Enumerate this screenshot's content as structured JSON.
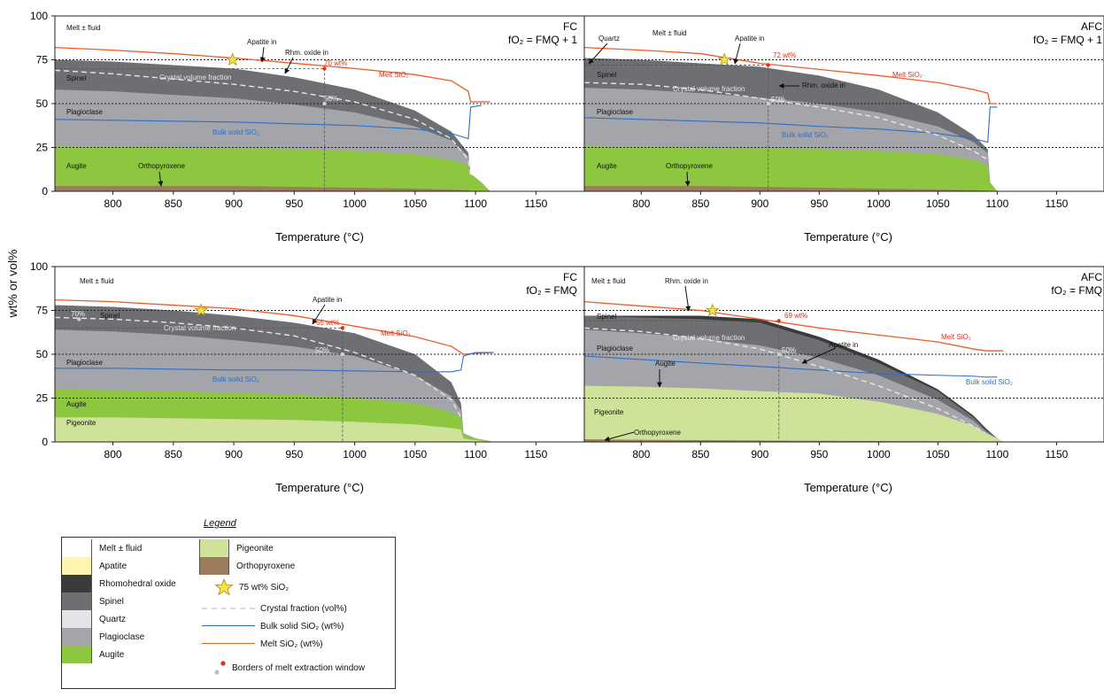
{
  "y_axis_title": "wt% or vol%",
  "panels": [
    {
      "id": "fc-fmq1",
      "label": "FC",
      "fo2": "fO₂ = FMQ + 1",
      "xlabel": "Temperature (°C)",
      "x_ticks": [
        "800",
        "850",
        "900",
        "950",
        "1000",
        "1050",
        "1100",
        "1150"
      ],
      "y_ticks": [
        "0",
        "25",
        "50",
        "75",
        "100"
      ],
      "annotations": {
        "melt": "Melt ± fluid",
        "apatite": "Apatite in",
        "rhm": "Rhm. oxide in",
        "wt": "70 wt%",
        "melt_sio2": "Melt SiO₂",
        "spinel": "Spinel",
        "crystal": "Crystal volume fraction",
        "fifty": "50%",
        "plag": "Plagioclase",
        "bulk": "Bulk solid SiO₂",
        "augite": "Augite",
        "opx": "Orthopyroxene"
      }
    },
    {
      "id": "afc-fmq1",
      "label": "AFC",
      "fo2": "fO₂ = FMQ + 1",
      "xlabel": "Temperature (°C)",
      "x_ticks": [
        "800",
        "850",
        "900",
        "950",
        "1000",
        "1050",
        "1100",
        "1150"
      ],
      "annotations": {
        "quartz": "Quartz",
        "melt": "Melt ± fluid",
        "apatite": "Apatite in",
        "wt": "72 wt%",
        "melt_sio2": "Melt SiO₂",
        "spinel": "Spinel",
        "crystal": "Crystal volume fraction",
        "rhm": "Rhm. oxide in",
        "fifty": "50%",
        "plag": "Plagioclase",
        "bulk": "Bulk solid SiO₂",
        "augite": "Augite",
        "opx": "Orthopyroxene"
      }
    },
    {
      "id": "fc-fmq",
      "label": "FC",
      "fo2": "fO₂ = FMQ",
      "xlabel": "Temperature (°C)",
      "x_ticks": [
        "800",
        "850",
        "900",
        "950",
        "1000",
        "1050",
        "1100",
        "1150"
      ],
      "y_ticks": [
        "0",
        "25",
        "50",
        "75",
        "100"
      ],
      "annotations": {
        "melt": "Melt ± fluid",
        "seventy": "70%",
        "spinel": "Spinel",
        "apatite": "Apatite in",
        "wt": "65 wt%",
        "melt_sio2": "Melt SiO₂",
        "crystal": "Crystal volume fraction",
        "fifty": "50%",
        "plag": "Plagioclase",
        "bulk": "Bulk solid SiO₂",
        "augite": "Augite",
        "pig": "Pigeonite"
      }
    },
    {
      "id": "afc-fmq",
      "label": "AFC",
      "fo2": "fO₂ = FMQ",
      "xlabel": "Temperature (°C)",
      "x_ticks": [
        "800",
        "850",
        "900",
        "950",
        "1000",
        "1050",
        "1100",
        "1150"
      ],
      "annotations": {
        "melt": "Melt ± fluid",
        "rhm": "Rhm. oxide in",
        "spinel": "Spinel",
        "wt": "69 wt%",
        "apatite": "Apatite in",
        "melt_sio2": "Melt SiO₂",
        "crystal": "Crystal volume fraction",
        "fifty": "50%",
        "plag": "Plagioclase",
        "augite": "Augite",
        "bulk": "Bulk solid SiO₂",
        "pig": "Pigeonite",
        "opx": "Orthopyroxene"
      }
    }
  ],
  "colors": {
    "melt": "#ffffff",
    "apatite": "#fff5b0",
    "rhm_oxide": "#3b3b3b",
    "spinel": "#6e6f72",
    "quartz": "#e4e4e6",
    "plagioclase": "#a3a5aa",
    "augite": "#8dc63f",
    "pigeonite": "#cfe29a",
    "orthopyroxene": "#9b7c5c",
    "melt_sio2_line": "#f15a24",
    "bulk_sio2_line": "#2e6fc5",
    "crystal_fraction_line": "#e6e6e6"
  },
  "legend": {
    "title": "Legend",
    "items": {
      "melt": "Melt ± fluid",
      "apatite": "Apatite",
      "rhm": "Rhomohedral oxide",
      "spinel": "Spinel",
      "quartz": "Quartz",
      "plag": "Plagioclase",
      "augite": "Augite",
      "pig": "Pigeonite",
      "opx": "Orthopyroxene",
      "star": "75 wt% SiO₂",
      "crystal": "Crystal fraction (vol%)",
      "bulk": "Bulk solid SiO₂ (wt%)",
      "melt_sio2": "Melt SiO₂ (wt%)",
      "borders": "Borders of melt extraction window"
    }
  },
  "chart_data": [
    {
      "type": "area",
      "panel": "FC, fO₂ = FMQ + 1",
      "xlabel": "Temperature (°C)",
      "ylabel": "wt% or vol%",
      "xlim": [
        752,
        1190
      ],
      "ylim": [
        0,
        100
      ],
      "reference_lines_y": [
        25,
        50,
        75
      ],
      "x": [
        752,
        800,
        850,
        900,
        950,
        1000,
        1050,
        1080,
        1094,
        1096,
        1105,
        1112
      ],
      "series": [
        {
          "name": "Orthopyroxene",
          "values": [
            3,
            3,
            3,
            3,
            2.5,
            2,
            1.5,
            1,
            0.6,
            0,
            0,
            0
          ]
        },
        {
          "name": "Augite",
          "values": [
            26,
            25.5,
            25,
            24.5,
            24,
            23,
            21,
            18,
            15,
            10,
            5,
            0
          ]
        },
        {
          "name": "Plagioclase",
          "values": [
            58,
            57,
            55,
            53,
            49.5,
            45,
            37,
            29,
            20,
            10,
            5,
            0
          ]
        },
        {
          "name": "Spinel",
          "values": [
            75,
            74,
            72,
            70,
            65,
            58,
            46,
            34,
            22,
            10,
            5,
            0
          ]
        },
        {
          "name": "Melt SiO₂",
          "values": [
            82,
            80.5,
            78.5,
            76,
            73,
            70,
            66.5,
            63,
            57,
            51,
            51,
            51
          ]
        },
        {
          "name": "Bulk solid SiO₂",
          "values": [
            41,
            40.5,
            40,
            39.5,
            38.5,
            37.5,
            35.5,
            33,
            30,
            48,
            49,
            null
          ]
        },
        {
          "name": "Crystal volume fraction",
          "values": [
            69,
            67,
            64,
            61,
            57,
            51,
            41,
            30,
            18,
            9,
            null,
            null
          ]
        }
      ],
      "markers": [
        {
          "label": "75 wt% SiO₂",
          "x": 899,
          "y": 75
        },
        {
          "label": "70 wt%",
          "x": 975,
          "y": 70
        },
        {
          "label": "50%",
          "x": 975,
          "y": 50
        }
      ]
    },
    {
      "type": "area",
      "panel": "AFC, fO₂ = FMQ + 1",
      "xlabel": "Temperature (°C)",
      "ylabel": "wt% or vol%",
      "xlim": [
        752,
        1190
      ],
      "ylim": [
        0,
        100
      ],
      "reference_lines_y": [
        25,
        50,
        75
      ],
      "x": [
        752,
        800,
        850,
        900,
        950,
        1000,
        1050,
        1080,
        1092,
        1094,
        1100
      ],
      "series": [
        {
          "name": "Orthopyroxene",
          "values": [
            3,
            3,
            3,
            2.5,
            2,
            1.5,
            1,
            0.6,
            0.4,
            0,
            0
          ]
        },
        {
          "name": "Augite",
          "values": [
            26,
            25.5,
            25,
            24.5,
            24,
            23,
            21,
            18,
            15,
            5,
            0
          ]
        },
        {
          "name": "Plagioclase",
          "values": [
            59,
            58,
            56,
            53.5,
            50,
            45,
            37,
            28,
            22,
            5,
            0
          ]
        },
        {
          "name": "Spinel",
          "values": [
            76,
            75,
            73,
            71,
            66,
            58,
            45,
            32,
            24,
            5,
            0
          ]
        },
        {
          "name": "Melt SiO₂",
          "values": [
            82,
            80.5,
            78.5,
            73,
            69.5,
            66,
            62,
            58,
            56,
            50,
            50
          ]
        },
        {
          "name": "Bulk solid SiO₂",
          "values": [
            42,
            41,
            40,
            39,
            37,
            35.5,
            33,
            30,
            28,
            48,
            48
          ]
        },
        {
          "name": "Crystal volume fraction",
          "values": [
            62,
            61,
            58,
            53,
            48,
            42,
            32,
            23,
            18,
            null,
            null
          ]
        }
      ],
      "markers": [
        {
          "label": "75 wt% SiO₂",
          "x": 870,
          "y": 75
        },
        {
          "label": "72 wt%",
          "x": 907,
          "y": 72
        },
        {
          "label": "50%",
          "x": 907,
          "y": 50
        }
      ]
    },
    {
      "type": "area",
      "panel": "FC, fO₂ = FMQ",
      "xlabel": "Temperature (°C)",
      "ylabel": "wt% or vol%",
      "xlim": [
        752,
        1190
      ],
      "ylim": [
        0,
        100
      ],
      "reference_lines_y": [
        25,
        50,
        75
      ],
      "x": [
        752,
        800,
        850,
        900,
        950,
        1000,
        1050,
        1080,
        1088,
        1090,
        1100,
        1115
      ],
      "series": [
        {
          "name": "Pigeonite",
          "values": [
            14,
            14,
            13.5,
            13,
            12.5,
            11.5,
            10,
            8,
            7,
            2,
            1,
            0
          ]
        },
        {
          "name": "Augite",
          "values": [
            30,
            29.5,
            29,
            28,
            27,
            25,
            22,
            17,
            14,
            4,
            2,
            0
          ]
        },
        {
          "name": "Plagioclase",
          "values": [
            64,
            63,
            61,
            58,
            54.5,
            49,
            38,
            26,
            18,
            5,
            2,
            0
          ]
        },
        {
          "name": "Spinel",
          "values": [
            78,
            77,
            75,
            72,
            68,
            62,
            50,
            34,
            22,
            5,
            2,
            0
          ]
        },
        {
          "name": "Melt SiO₂",
          "values": [
            81,
            80,
            78,
            76,
            72,
            66,
            60,
            54.5,
            51,
            50,
            50.5,
            51
          ]
        },
        {
          "name": "Bulk solid SiO₂",
          "values": [
            42,
            42,
            41.5,
            41,
            41,
            40.5,
            40,
            40,
            41,
            49,
            51,
            51
          ]
        },
        {
          "name": "Crystal volume fraction",
          "values": [
            71,
            70,
            68,
            65,
            60.5,
            51,
            38,
            24,
            14,
            null,
            null,
            null
          ]
        }
      ],
      "markers": [
        {
          "label": "75 wt% SiO₂",
          "x": 873,
          "y": 75
        },
        {
          "label": "65 wt%",
          "x": 990,
          "y": 65
        },
        {
          "label": "50%",
          "x": 990,
          "y": 50
        },
        {
          "label": "70%",
          "x": 772,
          "y": 70
        }
      ]
    },
    {
      "type": "area",
      "panel": "AFC, fO₂ = FMQ",
      "xlabel": "Temperature (°C)",
      "ylabel": "wt% or vol%",
      "xlim": [
        752,
        1190
      ],
      "ylim": [
        0,
        100
      ],
      "reference_lines_y": [
        25,
        50,
        75
      ],
      "x": [
        752,
        800,
        850,
        900,
        950,
        1000,
        1050,
        1080,
        1090,
        1100,
        1105
      ],
      "series": [
        {
          "name": "Orthopyroxene",
          "values": [
            1.5,
            1.2,
            1,
            0.8,
            0.6,
            0.5,
            0.4,
            0.3,
            0.2,
            0,
            0
          ]
        },
        {
          "name": "Pigeonite",
          "values": [
            32,
            31.5,
            30.5,
            29,
            27.5,
            23,
            16,
            9,
            5,
            2,
            0
          ]
        },
        {
          "name": "Plagioclase",
          "values": [
            64,
            62,
            59,
            55,
            48,
            38,
            24,
            12,
            6,
            2,
            0
          ]
        },
        {
          "name": "Spinel",
          "values": [
            72,
            71,
            70,
            68,
            58,
            45,
            29,
            14,
            7,
            2,
            0
          ]
        },
        {
          "name": "Rhombohedral oxide",
          "values": [
            72,
            72,
            72,
            70,
            60,
            47,
            30,
            15,
            8,
            2,
            0
          ]
        },
        {
          "name": "Melt SiO₂",
          "values": [
            80,
            77.5,
            75,
            70,
            65,
            61,
            57,
            53,
            52,
            52,
            52
          ]
        },
        {
          "name": "Bulk solid SiO₂",
          "values": [
            49,
            47,
            45,
            43,
            41,
            39,
            38,
            37.5,
            37,
            37,
            null
          ]
        },
        {
          "name": "Crystal volume fraction",
          "values": [
            65,
            63,
            59,
            53,
            43,
            32,
            19,
            9,
            5,
            null,
            null
          ]
        }
      ],
      "markers": [
        {
          "label": "75 wt% SiO₂",
          "x": 860,
          "y": 75
        },
        {
          "label": "69 wt%",
          "x": 916,
          "y": 69
        },
        {
          "label": "50%",
          "x": 916,
          "y": 50
        }
      ]
    }
  ]
}
